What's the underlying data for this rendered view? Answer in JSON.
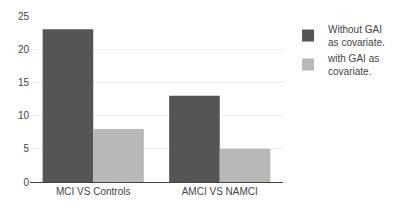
{
  "chart_data": {
    "type": "bar",
    "categories": [
      "MCI VS Controls",
      "AMCI VS NAMCI"
    ],
    "series": [
      {
        "name": "Without GAI\nas covariate.",
        "color": "#555555",
        "values": [
          23,
          13
        ]
      },
      {
        "name": "with GAI as\ncovariate.",
        "color": "#b8b8b8",
        "values": [
          8,
          5
        ]
      }
    ],
    "ylim": [
      0,
      25
    ],
    "yticks": [
      0,
      5,
      10,
      15,
      20,
      25
    ],
    "grid": true,
    "legend": "upper right"
  }
}
